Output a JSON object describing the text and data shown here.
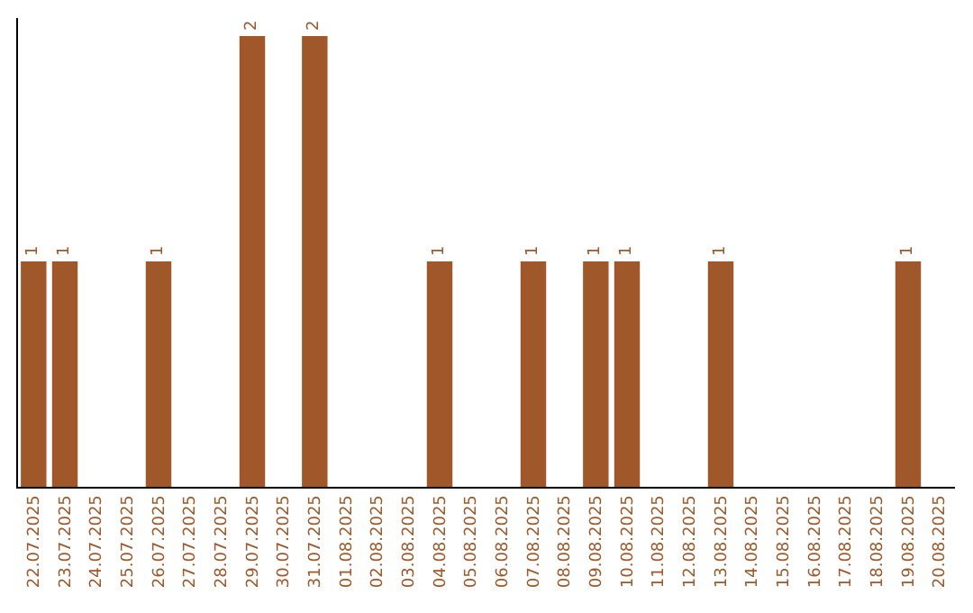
{
  "chart_data": {
    "type": "bar",
    "categories": [
      "22.07.2025",
      "23.07.2025",
      "24.07.2025",
      "25.07.2025",
      "26.07.2025",
      "27.07.2025",
      "28.07.2025",
      "29.07.2025",
      "30.07.2025",
      "31.07.2025",
      "01.08.2025",
      "02.08.2025",
      "03.08.2025",
      "04.08.2025",
      "05.08.2025",
      "06.08.2025",
      "07.08.2025",
      "08.08.2025",
      "09.08.2025",
      "10.08.2025",
      "11.08.2025",
      "12.08.2025",
      "13.08.2025",
      "14.08.2025",
      "15.08.2025",
      "16.08.2025",
      "17.08.2025",
      "18.08.2025",
      "19.08.2025",
      "20.08.2025"
    ],
    "values": [
      1,
      1,
      null,
      null,
      1,
      null,
      null,
      2,
      null,
      2,
      null,
      null,
      null,
      1,
      null,
      null,
      1,
      null,
      1,
      1,
      null,
      null,
      1,
      null,
      null,
      null,
      null,
      null,
      1,
      null
    ],
    "color": "#a0582a",
    "ylim": [
      0,
      2.08
    ],
    "data_labels": true
  }
}
